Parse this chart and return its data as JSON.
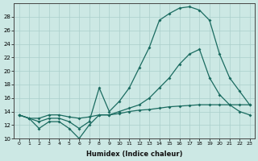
{
  "xlabel": "Humidex (Indice chaleur)",
  "background_color": "#cce8e4",
  "grid_color": "#aacfcb",
  "line_color": "#1a6b60",
  "xlim": [
    -0.5,
    23.5
  ],
  "ylim": [
    10,
    30
  ],
  "yticks": [
    10,
    12,
    14,
    16,
    18,
    20,
    22,
    24,
    26,
    28
  ],
  "xticks": [
    0,
    1,
    2,
    3,
    4,
    5,
    6,
    7,
    8,
    9,
    10,
    11,
    12,
    13,
    14,
    15,
    16,
    17,
    18,
    19,
    20,
    21,
    22,
    23
  ],
  "line1_x": [
    0,
    1,
    2,
    3,
    4,
    5,
    6,
    7,
    8,
    9,
    10,
    11,
    12,
    13,
    14,
    15,
    16,
    17,
    18,
    19,
    20,
    21,
    22,
    23
  ],
  "line1_y": [
    13.5,
    13.0,
    13.0,
    13.5,
    13.5,
    13.2,
    13.0,
    13.2,
    13.5,
    13.5,
    13.7,
    14.0,
    14.2,
    14.3,
    14.5,
    14.7,
    14.8,
    14.9,
    15.0,
    15.0,
    15.0,
    15.0,
    15.0,
    15.0
  ],
  "line2_x": [
    0,
    1,
    2,
    3,
    4,
    5,
    6,
    7,
    8,
    9,
    10,
    11,
    12,
    13,
    14,
    15,
    16,
    17,
    18,
    19,
    20,
    21,
    22,
    23
  ],
  "line2_y": [
    13.5,
    13.0,
    11.5,
    12.5,
    12.5,
    11.5,
    10.0,
    12.0,
    13.5,
    13.5,
    14.0,
    14.5,
    15.0,
    16.0,
    17.5,
    19.0,
    21.0,
    22.5,
    23.2,
    19.0,
    16.5,
    15.0,
    14.0,
    13.5
  ],
  "line3_x": [
    0,
    1,
    2,
    3,
    4,
    5,
    6,
    7,
    8,
    9,
    10,
    11,
    12,
    13,
    14,
    15,
    16,
    17,
    18,
    19,
    20,
    21,
    22,
    23
  ],
  "line3_y": [
    13.5,
    13.0,
    12.5,
    13.0,
    13.0,
    12.5,
    11.5,
    12.5,
    17.5,
    14.0,
    15.5,
    17.5,
    20.5,
    23.5,
    27.5,
    28.5,
    29.3,
    29.5,
    29.0,
    27.5,
    22.5,
    19.0,
    17.0,
    15.0
  ]
}
